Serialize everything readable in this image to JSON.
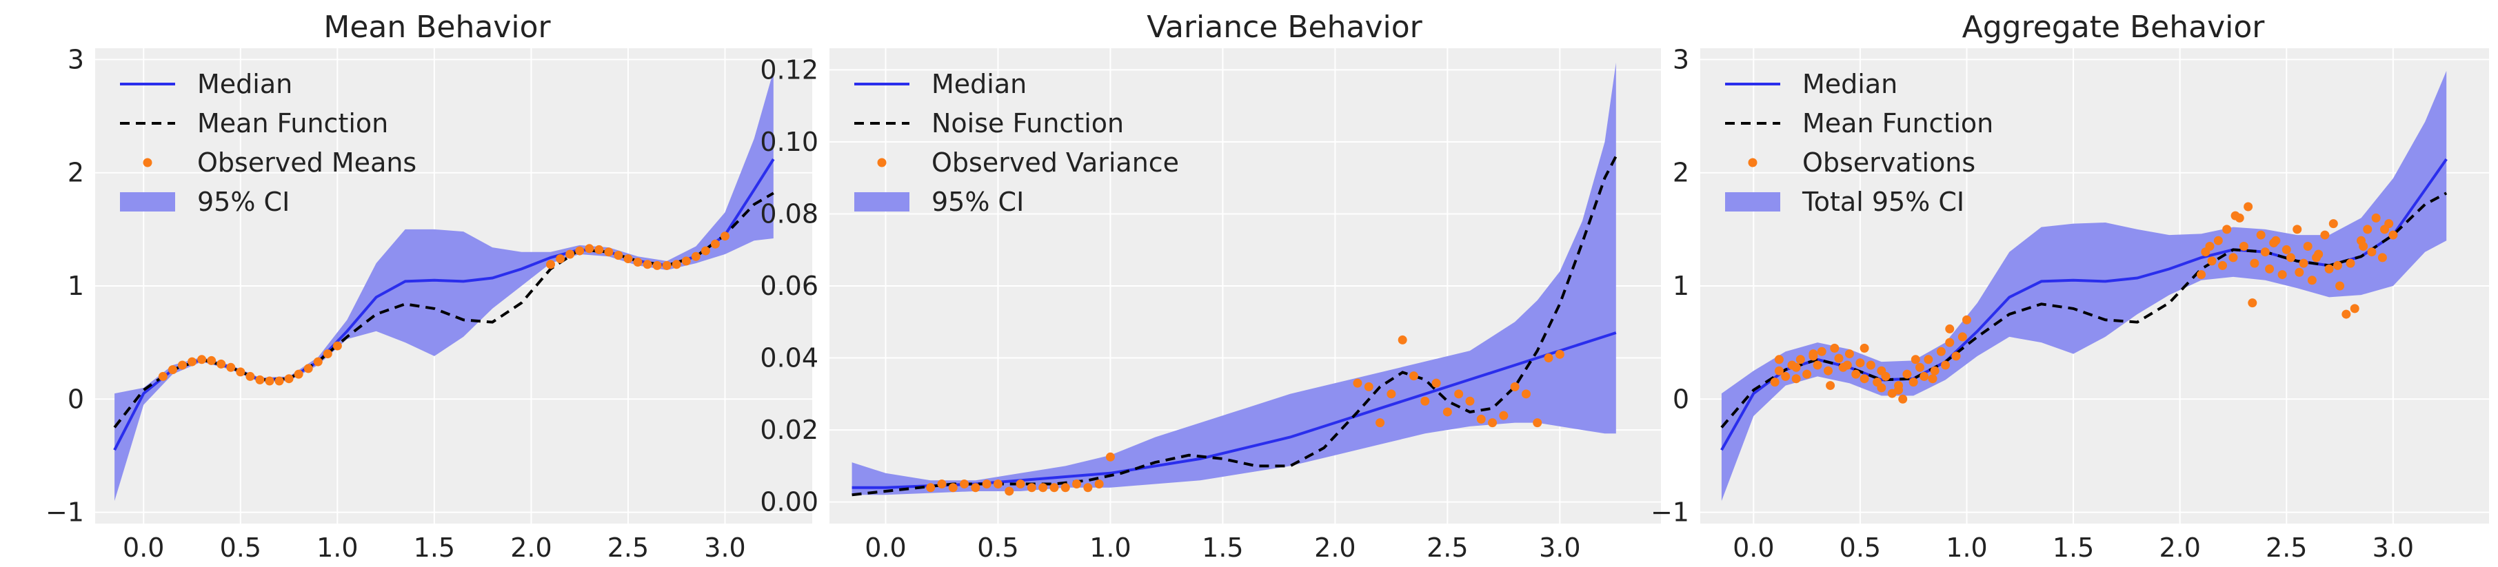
{
  "colors": {
    "median": "#2a2eec",
    "mean_function": "#000000",
    "observed": "#fa7c17",
    "ci_band": "#8e90f0",
    "panel_bg": "#eeeeee",
    "grid": "#ffffff"
  },
  "chart_data": [
    {
      "type": "line",
      "title": "Mean Behavior",
      "xlim": [
        -0.25,
        3.45
      ],
      "ylim": [
        -1.1,
        3.1
      ],
      "xticks": [
        0.0,
        0.5,
        1.0,
        1.5,
        2.0,
        2.5,
        3.0
      ],
      "xtick_labels": [
        "0.0",
        "0.5",
        "1.0",
        "1.5",
        "2.0",
        "2.5",
        "3.0"
      ],
      "yticks": [
        -1,
        0,
        1,
        2,
        3
      ],
      "ytick_labels": [
        "−1",
        "0",
        "1",
        "2",
        "3"
      ],
      "legend_position": "top-left",
      "legend": [
        "Median",
        "Mean Function",
        "Observed Means",
        "95% CI"
      ],
      "series": [
        {
          "name": "Median",
          "kind": "line",
          "x": [
            -0.15,
            0.0,
            0.15,
            0.3,
            0.45,
            0.6,
            0.75,
            0.9,
            1.05,
            1.2,
            1.35,
            1.5,
            1.65,
            1.8,
            1.95,
            2.1,
            2.25,
            2.4,
            2.55,
            2.7,
            2.85,
            3.0,
            3.15,
            3.25
          ],
          "y": [
            -0.45,
            0.05,
            0.26,
            0.35,
            0.28,
            0.17,
            0.18,
            0.33,
            0.6,
            0.9,
            1.04,
            1.05,
            1.04,
            1.07,
            1.15,
            1.25,
            1.32,
            1.3,
            1.22,
            1.18,
            1.26,
            1.45,
            1.85,
            2.12
          ]
        },
        {
          "name": "Mean Function",
          "kind": "dashed",
          "x": [
            -0.15,
            0.0,
            0.15,
            0.3,
            0.45,
            0.6,
            0.75,
            0.9,
            1.05,
            1.2,
            1.35,
            1.5,
            1.65,
            1.8,
            1.95,
            2.1,
            2.25,
            2.4,
            2.55,
            2.7,
            2.85,
            3.0,
            3.15,
            3.25
          ],
          "y": [
            -0.25,
            0.08,
            0.26,
            0.35,
            0.28,
            0.17,
            0.18,
            0.33,
            0.55,
            0.75,
            0.84,
            0.8,
            0.7,
            0.68,
            0.85,
            1.15,
            1.32,
            1.3,
            1.22,
            1.18,
            1.26,
            1.45,
            1.72,
            1.82
          ]
        },
        {
          "name": "Observed Means",
          "kind": "points",
          "x": [
            0.1,
            0.15,
            0.2,
            0.25,
            0.3,
            0.35,
            0.4,
            0.45,
            0.5,
            0.55,
            0.6,
            0.65,
            0.7,
            0.75,
            0.8,
            0.85,
            0.9,
            0.95,
            1.0,
            2.1,
            2.15,
            2.2,
            2.25,
            2.3,
            2.35,
            2.4,
            2.45,
            2.5,
            2.55,
            2.6,
            2.65,
            2.7,
            2.75,
            2.8,
            2.85,
            2.9,
            2.95,
            3.0
          ],
          "y": [
            0.2,
            0.26,
            0.3,
            0.33,
            0.35,
            0.34,
            0.31,
            0.28,
            0.24,
            0.2,
            0.17,
            0.16,
            0.16,
            0.18,
            0.22,
            0.27,
            0.33,
            0.4,
            0.47,
            1.19,
            1.24,
            1.28,
            1.31,
            1.33,
            1.32,
            1.3,
            1.27,
            1.24,
            1.21,
            1.19,
            1.18,
            1.18,
            1.19,
            1.22,
            1.26,
            1.31,
            1.37,
            1.44
          ]
        },
        {
          "name": "95% CI",
          "kind": "band",
          "x": [
            -0.15,
            0.0,
            0.15,
            0.3,
            0.45,
            0.6,
            0.75,
            0.9,
            1.05,
            1.2,
            1.35,
            1.5,
            1.65,
            1.8,
            1.95,
            2.1,
            2.25,
            2.4,
            2.55,
            2.7,
            2.85,
            3.0,
            3.15,
            3.25
          ],
          "lower": [
            -0.9,
            -0.05,
            0.22,
            0.33,
            0.26,
            0.15,
            0.16,
            0.3,
            0.53,
            0.6,
            0.5,
            0.38,
            0.55,
            0.8,
            1.0,
            1.2,
            1.28,
            1.26,
            1.18,
            1.14,
            1.2,
            1.28,
            1.4,
            1.42
          ],
          "upper": [
            0.05,
            0.1,
            0.3,
            0.37,
            0.3,
            0.19,
            0.2,
            0.37,
            0.7,
            1.2,
            1.5,
            1.5,
            1.48,
            1.34,
            1.3,
            1.3,
            1.36,
            1.34,
            1.26,
            1.22,
            1.35,
            1.65,
            2.3,
            2.9
          ]
        }
      ]
    },
    {
      "type": "line",
      "title": "Variance Behavior",
      "xlim": [
        -0.25,
        3.45
      ],
      "ylim": [
        -0.006,
        0.126
      ],
      "xticks": [
        0.0,
        0.5,
        1.0,
        1.5,
        2.0,
        2.5,
        3.0
      ],
      "xtick_labels": [
        "0.0",
        "0.5",
        "1.0",
        "1.5",
        "2.0",
        "2.5",
        "3.0"
      ],
      "yticks": [
        0.0,
        0.02,
        0.04,
        0.06,
        0.08,
        0.1,
        0.12
      ],
      "ytick_labels": [
        "0.00",
        "0.02",
        "0.04",
        "0.06",
        "0.08",
        "0.10",
        "0.12"
      ],
      "legend_position": "top-left",
      "legend": [
        "Median",
        "Noise Function",
        "Observed Variance",
        "95% CI"
      ],
      "series": [
        {
          "name": "Median",
          "kind": "line",
          "x": [
            -0.15,
            0.0,
            0.2,
            0.4,
            0.6,
            0.8,
            1.0,
            1.2,
            1.4,
            1.6,
            1.8,
            2.0,
            2.2,
            2.4,
            2.6,
            2.8,
            3.0,
            3.25
          ],
          "y": [
            0.004,
            0.004,
            0.0045,
            0.005,
            0.006,
            0.007,
            0.008,
            0.01,
            0.012,
            0.015,
            0.018,
            0.022,
            0.026,
            0.03,
            0.034,
            0.038,
            0.042,
            0.047
          ]
        },
        {
          "name": "Noise Function",
          "kind": "dashed",
          "x": [
            -0.15,
            0.0,
            0.15,
            0.3,
            0.45,
            0.6,
            0.75,
            0.9,
            1.05,
            1.2,
            1.35,
            1.5,
            1.65,
            1.8,
            1.95,
            2.1,
            2.2,
            2.3,
            2.4,
            2.5,
            2.6,
            2.7,
            2.8,
            2.9,
            3.0,
            3.1,
            3.2,
            3.25
          ],
          "y": [
            0.002,
            0.003,
            0.004,
            0.005,
            0.005,
            0.005,
            0.005,
            0.006,
            0.008,
            0.011,
            0.013,
            0.012,
            0.01,
            0.01,
            0.015,
            0.025,
            0.032,
            0.036,
            0.034,
            0.028,
            0.025,
            0.026,
            0.032,
            0.042,
            0.055,
            0.072,
            0.09,
            0.096
          ]
        },
        {
          "name": "Observed Variance",
          "kind": "points",
          "x": [
            0.2,
            0.25,
            0.3,
            0.35,
            0.4,
            0.45,
            0.5,
            0.55,
            0.6,
            0.65,
            0.7,
            0.75,
            0.8,
            0.85,
            0.9,
            0.95,
            1.0,
            2.1,
            2.15,
            2.2,
            2.25,
            2.3,
            2.35,
            2.4,
            2.45,
            2.5,
            2.55,
            2.6,
            2.65,
            2.7,
            2.75,
            2.8,
            2.85,
            2.9,
            2.95,
            3.0
          ],
          "y": [
            0.004,
            0.005,
            0.004,
            0.005,
            0.004,
            0.005,
            0.005,
            0.003,
            0.005,
            0.004,
            0.004,
            0.004,
            0.004,
            0.005,
            0.004,
            0.005,
            0.0125,
            0.033,
            0.032,
            0.022,
            0.03,
            0.045,
            0.035,
            0.028,
            0.033,
            0.025,
            0.03,
            0.028,
            0.023,
            0.022,
            0.024,
            0.032,
            0.03,
            0.022,
            0.04,
            0.041
          ]
        },
        {
          "name": "95% CI",
          "kind": "band",
          "x": [
            -0.15,
            0.0,
            0.2,
            0.4,
            0.6,
            0.8,
            1.0,
            1.2,
            1.4,
            1.6,
            1.8,
            2.0,
            2.2,
            2.4,
            2.6,
            2.8,
            2.9,
            3.0,
            3.1,
            3.2,
            3.25
          ],
          "lower": [
            0.002,
            0.002,
            0.0025,
            0.003,
            0.003,
            0.004,
            0.004,
            0.005,
            0.006,
            0.008,
            0.01,
            0.013,
            0.016,
            0.019,
            0.021,
            0.022,
            0.022,
            0.021,
            0.02,
            0.019,
            0.019
          ],
          "upper": [
            0.011,
            0.008,
            0.006,
            0.006,
            0.008,
            0.01,
            0.013,
            0.018,
            0.022,
            0.026,
            0.03,
            0.033,
            0.036,
            0.039,
            0.042,
            0.05,
            0.056,
            0.064,
            0.078,
            0.1,
            0.122
          ]
        }
      ]
    },
    {
      "type": "line",
      "title": "Aggregate Behavior",
      "xlim": [
        -0.25,
        3.45
      ],
      "ylim": [
        -1.1,
        3.1
      ],
      "xticks": [
        0.0,
        0.5,
        1.0,
        1.5,
        2.0,
        2.5,
        3.0
      ],
      "xtick_labels": [
        "0.0",
        "0.5",
        "1.0",
        "1.5",
        "2.0",
        "2.5",
        "3.0"
      ],
      "yticks": [
        -1,
        0,
        1,
        2,
        3
      ],
      "ytick_labels": [
        "−1",
        "0",
        "1",
        "2",
        "3"
      ],
      "legend_position": "top-left",
      "legend": [
        "Median",
        "Mean Function",
        "Observations",
        "Total 95% CI"
      ],
      "series": [
        {
          "name": "Median",
          "kind": "line",
          "x": [
            -0.15,
            0.0,
            0.15,
            0.3,
            0.45,
            0.6,
            0.75,
            0.9,
            1.05,
            1.2,
            1.35,
            1.5,
            1.65,
            1.8,
            1.95,
            2.1,
            2.25,
            2.4,
            2.55,
            2.7,
            2.85,
            3.0,
            3.15,
            3.25
          ],
          "y": [
            -0.45,
            0.05,
            0.26,
            0.35,
            0.28,
            0.17,
            0.18,
            0.33,
            0.6,
            0.9,
            1.04,
            1.05,
            1.04,
            1.07,
            1.15,
            1.25,
            1.32,
            1.3,
            1.22,
            1.18,
            1.26,
            1.45,
            1.85,
            2.12
          ]
        },
        {
          "name": "Mean Function",
          "kind": "dashed",
          "x": [
            -0.15,
            0.0,
            0.15,
            0.3,
            0.45,
            0.6,
            0.75,
            0.9,
            1.05,
            1.2,
            1.35,
            1.5,
            1.65,
            1.8,
            1.95,
            2.1,
            2.25,
            2.4,
            2.55,
            2.7,
            2.85,
            3.0,
            3.15,
            3.25
          ],
          "y": [
            -0.25,
            0.08,
            0.26,
            0.35,
            0.28,
            0.17,
            0.18,
            0.33,
            0.55,
            0.75,
            0.84,
            0.8,
            0.7,
            0.68,
            0.85,
            1.15,
            1.32,
            1.3,
            1.22,
            1.18,
            1.26,
            1.45,
            1.72,
            1.82
          ]
        },
        {
          "name": "Observations",
          "kind": "points",
          "x": [
            0.1,
            0.12,
            0.15,
            0.18,
            0.2,
            0.22,
            0.25,
            0.28,
            0.3,
            0.32,
            0.35,
            0.38,
            0.4,
            0.42,
            0.45,
            0.48,
            0.5,
            0.52,
            0.55,
            0.58,
            0.6,
            0.62,
            0.65,
            0.68,
            0.7,
            0.72,
            0.75,
            0.78,
            0.8,
            0.82,
            0.85,
            0.88,
            0.9,
            0.92,
            0.95,
            0.98,
            1.0,
            0.12,
            0.2,
            0.28,
            0.36,
            0.44,
            0.52,
            0.6,
            0.68,
            0.76,
            0.84,
            0.92,
            2.1,
            2.12,
            2.15,
            2.18,
            2.2,
            2.22,
            2.25,
            2.28,
            2.3,
            2.32,
            2.35,
            2.38,
            2.4,
            2.42,
            2.45,
            2.48,
            2.5,
            2.52,
            2.55,
            2.58,
            2.6,
            2.62,
            2.65,
            2.68,
            2.7,
            2.72,
            2.75,
            2.78,
            2.8,
            2.82,
            2.85,
            2.88,
            2.9,
            2.92,
            2.95,
            2.98,
            3.0,
            2.14,
            2.26,
            2.34,
            2.44,
            2.56,
            2.64,
            2.74,
            2.86,
            2.96
          ],
          "y": [
            0.15,
            0.25,
            0.2,
            0.3,
            0.28,
            0.35,
            0.22,
            0.38,
            0.3,
            0.42,
            0.25,
            0.45,
            0.36,
            0.28,
            0.4,
            0.22,
            0.32,
            0.18,
            0.3,
            0.15,
            0.1,
            0.2,
            0.05,
            0.12,
            0.0,
            0.22,
            0.15,
            0.28,
            0.2,
            0.35,
            0.25,
            0.42,
            0.3,
            0.5,
            0.38,
            0.55,
            0.7,
            0.35,
            0.18,
            0.4,
            0.12,
            0.3,
            0.45,
            0.25,
            0.08,
            0.35,
            0.18,
            0.62,
            1.1,
            1.3,
            1.22,
            1.4,
            1.18,
            1.5,
            1.25,
            1.6,
            1.35,
            1.7,
            1.2,
            1.45,
            1.3,
            1.15,
            1.4,
            1.1,
            1.32,
            1.25,
            1.5,
            1.2,
            1.35,
            1.05,
            1.28,
            1.45,
            1.15,
            1.55,
            1.0,
            0.75,
            1.2,
            0.8,
            1.4,
            1.5,
            1.3,
            1.6,
            1.25,
            1.55,
            1.45,
            1.35,
            1.62,
            0.85,
            1.38,
            1.12,
            1.25,
            1.18,
            1.35,
            1.5
          ]
        },
        {
          "name": "Total 95% CI",
          "kind": "band",
          "x": [
            -0.15,
            0.0,
            0.15,
            0.3,
            0.45,
            0.6,
            0.75,
            0.9,
            1.05,
            1.2,
            1.35,
            1.5,
            1.65,
            1.8,
            1.95,
            2.1,
            2.25,
            2.4,
            2.55,
            2.7,
            2.85,
            3.0,
            3.15,
            3.25
          ],
          "lower": [
            -0.9,
            -0.15,
            0.12,
            0.2,
            0.14,
            0.03,
            0.03,
            0.17,
            0.38,
            0.55,
            0.5,
            0.4,
            0.55,
            0.75,
            0.92,
            1.05,
            1.08,
            1.05,
            0.98,
            0.9,
            0.92,
            1.0,
            1.3,
            1.4
          ],
          "upper": [
            0.05,
            0.25,
            0.42,
            0.5,
            0.44,
            0.33,
            0.34,
            0.5,
            0.85,
            1.3,
            1.52,
            1.55,
            1.56,
            1.5,
            1.45,
            1.46,
            1.52,
            1.5,
            1.45,
            1.45,
            1.6,
            1.95,
            2.45,
            2.9
          ]
        }
      ]
    }
  ]
}
